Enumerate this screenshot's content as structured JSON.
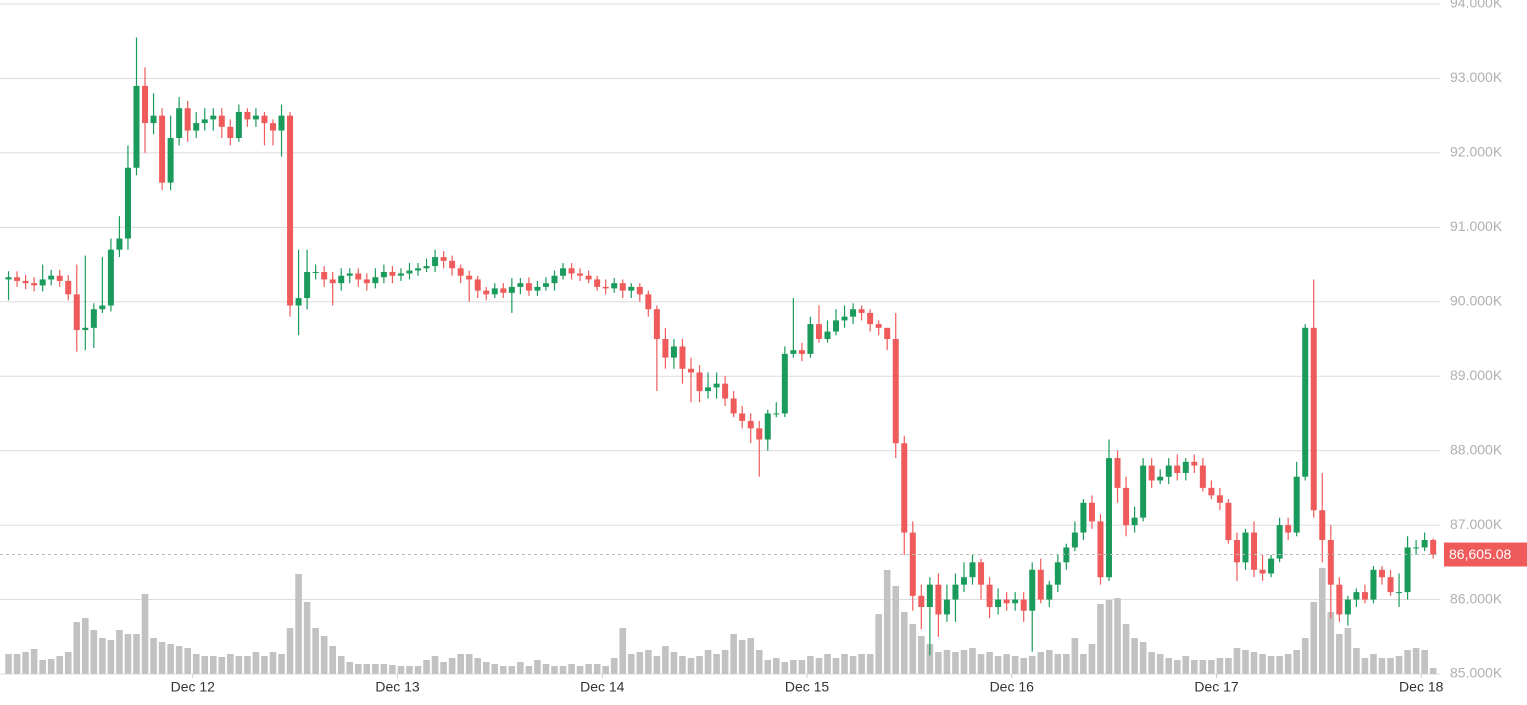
{
  "chart_data": {
    "type": "candlestick",
    "xlim": [
      -1,
      167.8
    ],
    "xticks": [
      {
        "value": 21.6,
        "label": "Dec 12"
      },
      {
        "value": 45.6,
        "label": "Dec 13"
      },
      {
        "value": 69.6,
        "label": "Dec 14"
      },
      {
        "value": 93.6,
        "label": "Dec 15"
      },
      {
        "value": 117.6,
        "label": "Dec 16"
      },
      {
        "value": 141.6,
        "label": "Dec 17"
      },
      {
        "value": 165.6,
        "label": "Dec 18"
      }
    ],
    "ylim": [
      85000,
      94000
    ],
    "yticks": [
      {
        "value": 85000,
        "label": "85.000K"
      },
      {
        "value": 86000,
        "label": "86.000K"
      },
      {
        "value": 87000,
        "label": "87.000K"
      },
      {
        "value": 88000,
        "label": "88.000K"
      },
      {
        "value": 89000,
        "label": "89.000K"
      },
      {
        "value": 90000,
        "label": "90.000K"
      },
      {
        "value": 91000,
        "label": "91.000K"
      },
      {
        "value": 92000,
        "label": "92.000K"
      },
      {
        "value": 93000,
        "label": "93.000K"
      },
      {
        "value": 94000,
        "label": "94.000K"
      }
    ],
    "grid": true,
    "up_color": "#1a9b5c",
    "down_color": "#ef5b5b",
    "volume_color": "#c2c2c2",
    "last_price": {
      "value": 86605.08,
      "label": "86,605.08"
    },
    "open": [
      90300,
      90330,
      90280,
      90250,
      90220,
      90300,
      90350,
      90280,
      90100,
      89620,
      89650,
      89900,
      89950,
      90700,
      90850,
      91800,
      92900,
      92400,
      92500,
      91600,
      92200,
      92600,
      92300,
      92400,
      92450,
      92500,
      92350,
      92200,
      92550,
      92450,
      92500,
      92400,
      92300,
      92500,
      89950,
      90050,
      90400,
      90400,
      90300,
      90250,
      90350,
      90380,
      90300,
      90250,
      90330,
      90400,
      90350,
      90380,
      90420,
      90450,
      90480,
      90600,
      90550,
      90450,
      90350,
      90300,
      90150,
      90100,
      90180,
      90120,
      90200,
      90250,
      90150,
      90200,
      90250,
      90350,
      90450,
      90380,
      90350,
      90300,
      90200,
      90180,
      90250,
      90150,
      90200,
      90100,
      89900,
      89500,
      89250,
      89400,
      89100,
      89050,
      88800,
      88850,
      88900,
      88700,
      88500,
      88400,
      88300,
      88150,
      88500,
      88500,
      89300,
      89350,
      89300,
      89700,
      89500,
      89600,
      89750,
      89800,
      89900,
      89850,
      89700,
      89650,
      89500,
      88100,
      86900,
      86050,
      85900,
      86200,
      85800,
      86000,
      86200,
      86300,
      86500,
      86200,
      85900,
      86000,
      85950,
      86000,
      85850,
      86400,
      86000,
      86200,
      86500,
      86700,
      86900,
      87300,
      87050,
      86300,
      87900,
      87500,
      87000,
      87100,
      87800,
      87600,
      87650,
      87800,
      87700,
      87850,
      87800,
      87500,
      87400,
      87300,
      86800,
      86500,
      86900,
      86400,
      86350,
      86550,
      87000,
      86900,
      87650,
      89650,
      87200,
      86800,
      86200,
      85800,
      86000,
      86100,
      86000,
      86400,
      86300,
      86100,
      86100,
      86700,
      86700,
      86800
    ],
    "high": [
      90410,
      90410,
      90360,
      90330,
      90500,
      90430,
      90430,
      90360,
      90500,
      90620,
      89980,
      90600,
      90850,
      91150,
      92100,
      93550,
      93150,
      92800,
      92600,
      92500,
      92750,
      92700,
      92550,
      92600,
      92600,
      92600,
      92450,
      92650,
      92600,
      92600,
      92550,
      92450,
      92650,
      92550,
      90700,
      90700,
      90500,
      90480,
      90400,
      90450,
      90450,
      90450,
      90380,
      90450,
      90500,
      90480,
      90450,
      90520,
      90520,
      90580,
      90700,
      90680,
      90620,
      90500,
      90420,
      90350,
      90200,
      90250,
      90250,
      90320,
      90320,
      90330,
      90280,
      90330,
      90420,
      90520,
      90520,
      90450,
      90420,
      90350,
      90300,
      90320,
      90300,
      90250,
      90250,
      90150,
      89950,
      89650,
      89500,
      89500,
      89250,
      89150,
      89050,
      89050,
      89000,
      88800,
      88600,
      88500,
      88400,
      88550,
      88650,
      89400,
      90050,
      89450,
      89800,
      89950,
      89750,
      89900,
      89950,
      89980,
      89950,
      89900,
      89750,
      89650,
      89850,
      88200,
      87050,
      86200,
      86300,
      86350,
      86200,
      86350,
      86500,
      86600,
      86550,
      86300,
      86150,
      86100,
      86100,
      86100,
      86500,
      86550,
      86250,
      86600,
      86750,
      87050,
      87350,
      87400,
      87150,
      88150,
      88000,
      87650,
      87250,
      87900,
      87900,
      87750,
      87900,
      87950,
      87900,
      87950,
      87900,
      87600,
      87500,
      87350,
      86900,
      86950,
      87050,
      86600,
      86600,
      87100,
      87100,
      87850,
      89700,
      90300,
      87700,
      87000,
      86300,
      86050,
      86150,
      86200,
      86450,
      86450,
      86400,
      86350,
      86850,
      86800,
      86900,
      86820
    ],
    "low": [
      90020,
      90200,
      90170,
      90140,
      90140,
      90220,
      90200,
      90020,
      89330,
      89350,
      89380,
      89850,
      89870,
      90600,
      90700,
      91700,
      92000,
      92250,
      91500,
      91500,
      92100,
      92150,
      92200,
      92300,
      92300,
      92200,
      92100,
      92150,
      92350,
      92350,
      92100,
      92100,
      91950,
      89800,
      89550,
      89900,
      90300,
      90200,
      89950,
      90150,
      90250,
      90200,
      90150,
      90180,
      90250,
      90250,
      90280,
      90300,
      90350,
      90400,
      90400,
      90450,
      90350,
      90250,
      90000,
      90050,
      90020,
      90050,
      90050,
      89850,
      90100,
      90080,
      90080,
      90150,
      90150,
      90300,
      90300,
      90280,
      90250,
      90150,
      90100,
      90120,
      90050,
      90050,
      90000,
      89800,
      88800,
      89100,
      89100,
      88900,
      88650,
      88650,
      88700,
      88700,
      88600,
      88450,
      88300,
      88100,
      87650,
      88000,
      88450,
      88450,
      89250,
      89200,
      89250,
      89450,
      89450,
      89550,
      89650,
      89700,
      89750,
      89600,
      89550,
      89350,
      87900,
      86600,
      85850,
      85600,
      85250,
      85500,
      85700,
      85700,
      86100,
      86200,
      86000,
      85750,
      85800,
      85850,
      85850,
      85700,
      85300,
      85950,
      85900,
      86100,
      86400,
      86650,
      86800,
      86950,
      86200,
      86250,
      87300,
      86850,
      86900,
      87050,
      87500,
      87550,
      87550,
      87600,
      87600,
      87700,
      87450,
      87350,
      87200,
      86750,
      86250,
      86400,
      86300,
      86250,
      86300,
      86500,
      86800,
      86850,
      87600,
      87100,
      86500,
      85750,
      85700,
      85650,
      85900,
      85950,
      85950,
      86200,
      86050,
      85900,
      86000,
      86600,
      86650,
      86550
    ],
    "close": [
      90330,
      90280,
      90250,
      90220,
      90300,
      90350,
      90280,
      90100,
      89620,
      89650,
      89900,
      89950,
      90700,
      90850,
      91800,
      92900,
      92400,
      92500,
      91600,
      92200,
      92600,
      92300,
      92400,
      92450,
      92500,
      92350,
      92200,
      92550,
      92450,
      92500,
      92400,
      92300,
      92500,
      89950,
      90050,
      90400,
      90400,
      90300,
      90250,
      90350,
      90380,
      90300,
      90250,
      90330,
      90400,
      90350,
      90380,
      90420,
      90450,
      90480,
      90600,
      90550,
      90450,
      90350,
      90300,
      90150,
      90100,
      90180,
      90120,
      90200,
      90250,
      90150,
      90200,
      90250,
      90350,
      90450,
      90380,
      90350,
      90300,
      90200,
      90180,
      90250,
      90150,
      90200,
      90100,
      89900,
      89500,
      89250,
      89400,
      89100,
      89050,
      88800,
      88850,
      88900,
      88700,
      88500,
      88400,
      88300,
      88150,
      88500,
      88500,
      89300,
      89350,
      89300,
      89700,
      89500,
      89600,
      89750,
      89800,
      89900,
      89850,
      89700,
      89650,
      89500,
      88100,
      86900,
      86050,
      85900,
      86200,
      85800,
      86000,
      86200,
      86300,
      86500,
      86200,
      85900,
      86000,
      85950,
      86000,
      85850,
      86400,
      86000,
      86200,
      86500,
      86700,
      86900,
      87300,
      87050,
      86300,
      87900,
      87500,
      87000,
      87100,
      87800,
      87600,
      87650,
      87800,
      87700,
      87850,
      87800,
      87500,
      87400,
      87300,
      86800,
      86500,
      86900,
      86400,
      86350,
      86550,
      87000,
      86900,
      87650,
      89650,
      87200,
      86800,
      86200,
      85800,
      86000,
      86100,
      86000,
      86400,
      86300,
      86100,
      86100,
      86700,
      86700,
      86800,
      86605
    ],
    "volume": [
      20,
      20,
      22,
      25,
      14,
      15,
      18,
      22,
      52,
      56,
      44,
      36,
      34,
      44,
      40,
      40,
      80,
      36,
      32,
      30,
      28,
      26,
      20,
      18,
      18,
      17,
      20,
      18,
      18,
      22,
      18,
      22,
      20,
      46,
      100,
      72,
      46,
      38,
      28,
      18,
      12,
      10,
      10,
      10,
      10,
      9,
      8,
      8,
      8,
      14,
      18,
      12,
      16,
      20,
      20,
      16,
      12,
      10,
      8,
      8,
      12,
      8,
      14,
      10,
      8,
      8,
      10,
      8,
      10,
      10,
      8,
      16,
      46,
      20,
      22,
      24,
      18,
      28,
      22,
      18,
      16,
      18,
      24,
      20,
      24,
      40,
      34,
      36,
      24,
      14,
      16,
      12,
      14,
      14,
      18,
      16,
      20,
      16,
      20,
      18,
      20,
      20,
      60,
      104,
      88,
      62,
      50,
      38,
      30,
      22,
      24,
      22,
      24,
      26,
      20,
      22,
      18,
      20,
      18,
      16,
      18,
      22,
      24,
      20,
      20,
      36,
      20,
      30,
      70,
      74,
      76,
      50,
      36,
      32,
      22,
      20,
      16,
      14,
      18,
      14,
      14,
      14,
      16,
      16,
      26,
      24,
      22,
      20,
      18,
      18,
      20,
      24,
      36,
      72,
      106,
      62,
      40,
      46,
      26,
      16,
      20,
      16,
      16,
      18,
      24,
      26,
      24,
      6
    ]
  }
}
